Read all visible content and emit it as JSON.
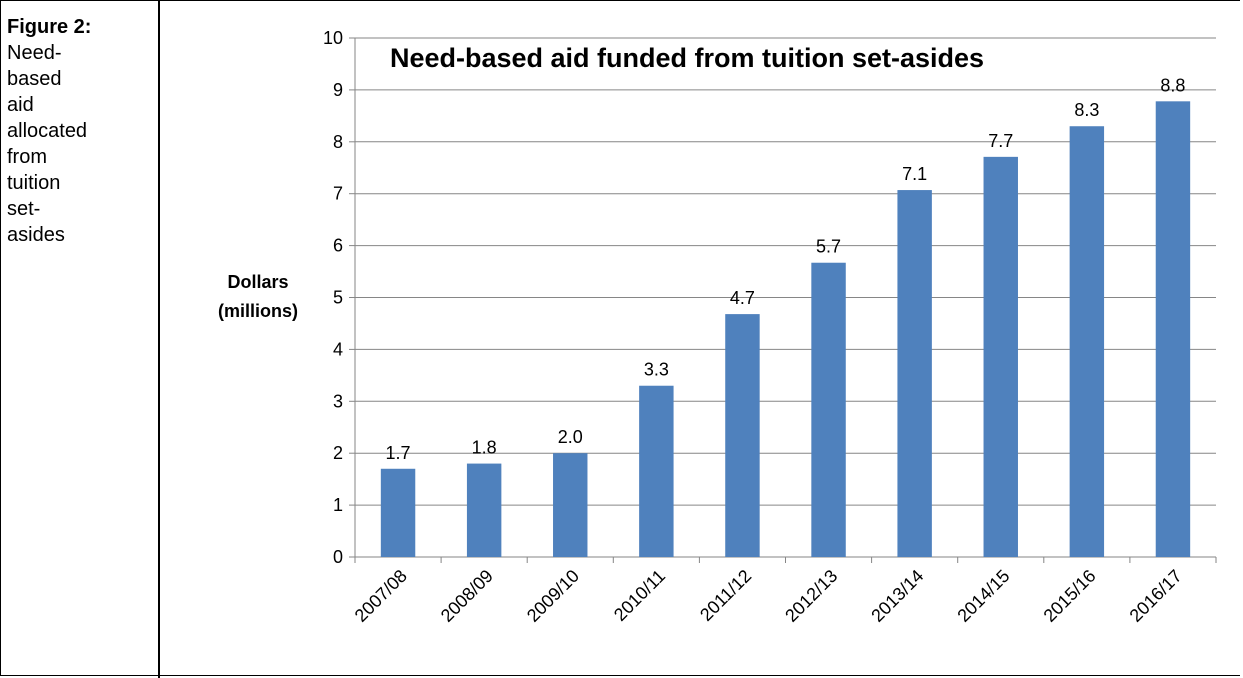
{
  "caption": {
    "label": "Figure 2:",
    "text": "Need-\nbased\naid\nallocated\nfrom\ntuition\nset-\nasides"
  },
  "chart_data": {
    "type": "bar",
    "title": "Need-based aid funded from tuition set-asides",
    "xlabel": "",
    "ylabel": "Dollars (millions)",
    "ylabel_lines": [
      "Dollars",
      "(millions)"
    ],
    "categories": [
      "2007/08",
      "2008/09",
      "2009/10",
      "2010/11",
      "2011/12",
      "2012/13",
      "2013/14",
      "2014/15",
      "2015/16",
      "2016/17"
    ],
    "values": [
      1.7,
      1.8,
      2.0,
      3.3,
      4.68,
      5.67,
      7.07,
      7.71,
      8.3,
      8.78
    ],
    "data_labels": [
      "1.7",
      "1.8",
      "2.0",
      "3.3",
      "4.7",
      "5.7",
      "7.1",
      "7.7",
      "8.3",
      "8.8"
    ],
    "ylim": [
      0,
      10
    ],
    "yticks": [
      "0",
      "1",
      "2",
      "3",
      "4",
      "5",
      "6",
      "7",
      "8",
      "9",
      "10"
    ],
    "grid": true,
    "legend": "none",
    "bar_color": "#4f81bd"
  }
}
